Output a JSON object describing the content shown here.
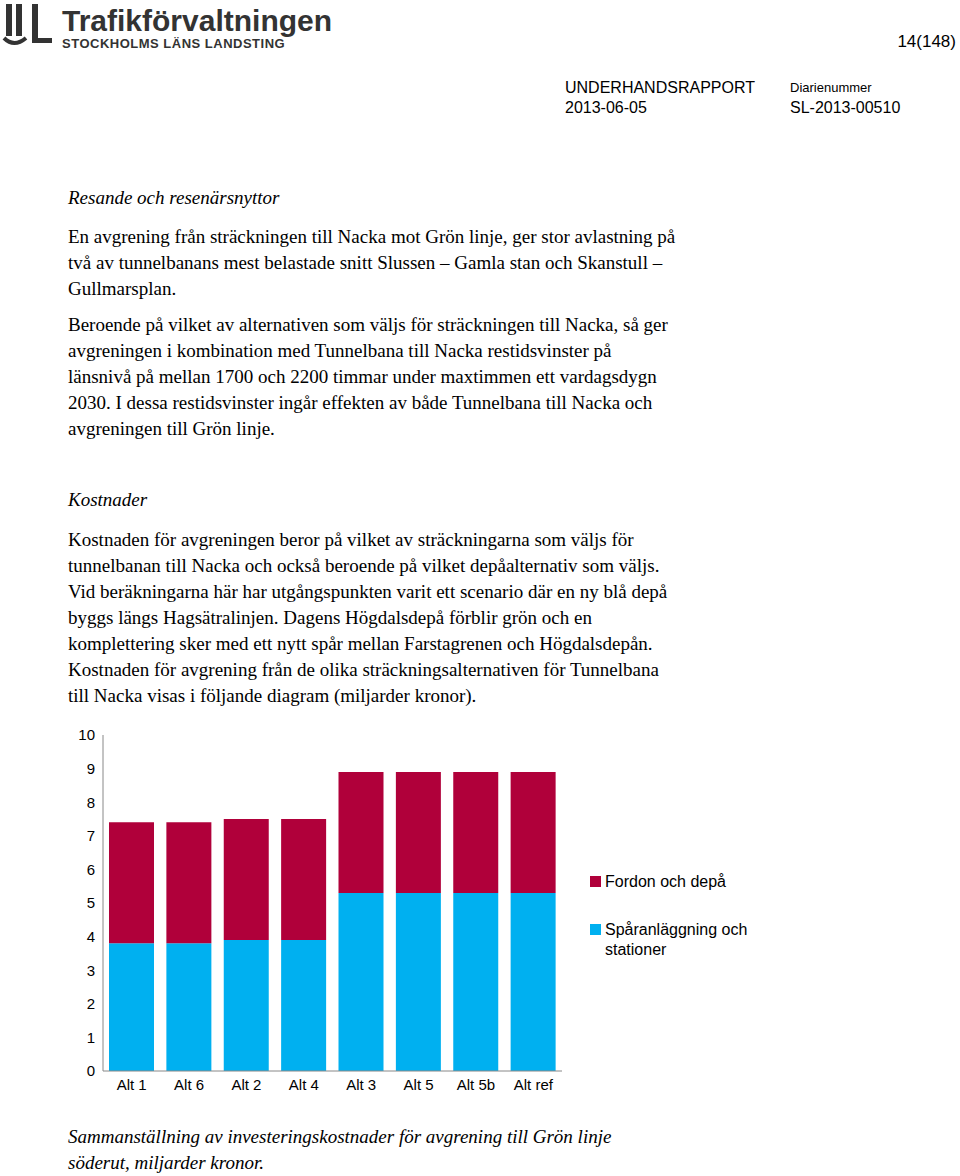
{
  "header": {
    "organization": "Trafikförvaltningen",
    "suborganization": "STOCKHOLMS LÄNS LANDSTING",
    "page": "14(148)",
    "report_type": "UNDERHANDSRAPPORT",
    "date": "2013-06-05",
    "registry_label": "Diarienummer",
    "registry_number": "SL-2013-00510"
  },
  "sections": [
    {
      "heading": "Resande och resenärsnyttor",
      "paragraphs": [
        [
          "En avgrening från sträckningen till Nacka mot Grön linje, ger stor avlastning på",
          "två av tunnelbanans mest belastade snitt Slussen – Gamla stan och Skanstull –",
          "Gullmarsplan."
        ],
        [
          "Beroende på vilket av alternativen som väljs för sträckningen till Nacka, så ger",
          "avgreningen i kombination med Tunnelbana till Nacka restidsvinster på",
          "länsnivå på mellan 1700 och 2200 timmar under maxtimmen ett vardagsdygn",
          "2030. I dessa restidsvinster ingår effekten av både Tunnelbana till Nacka och",
          "avgreningen till Grön linje."
        ]
      ]
    },
    {
      "heading": "Kostnader",
      "paragraphs": [
        [
          "Kostnaden för avgreningen beror på vilket av sträckningarna som väljs för",
          "tunnelbanan till Nacka och också beroende på vilket depåalternativ som väljs.",
          "Vid beräkningarna här har utgångspunkten varit ett scenario där en ny blå depå",
          "byggs längs Hagsätralinjen. Dagens Högdalsdepå förblir grön och en",
          "komplettering sker med ett nytt spår mellan Farstagrenen och Högdalsdepån.",
          "Kostnaden för avgrening från de olika sträckningsalternativen för Tunnelbana",
          "till Nacka visas i följande diagram (miljarder kronor)."
        ]
      ]
    }
  ],
  "chart_data": {
    "type": "bar",
    "stacked": true,
    "grid": false,
    "categories": [
      "Alt 1",
      "Alt 6",
      "Alt 2",
      "Alt 4",
      "Alt 3",
      "Alt 5",
      "Alt 5b",
      "Alt ref"
    ],
    "series": [
      {
        "name": "Spåranläggning och stationer",
        "color": "#00b0f0",
        "values": [
          3.8,
          3.8,
          3.9,
          3.9,
          5.3,
          5.3,
          5.3,
          5.3
        ]
      },
      {
        "name": "Fordon och depå",
        "color": "#b0003a",
        "values": [
          3.6,
          3.6,
          3.6,
          3.6,
          3.6,
          3.6,
          3.6,
          3.6
        ]
      }
    ],
    "ylim": [
      0,
      10
    ],
    "yticks": [
      0,
      1,
      2,
      3,
      4,
      5,
      6,
      7,
      8,
      9,
      10
    ]
  },
  "caption": [
    "Sammanställning av investeringskostnader för avgrening till Grön linje",
    "söderut, miljarder kronor."
  ]
}
